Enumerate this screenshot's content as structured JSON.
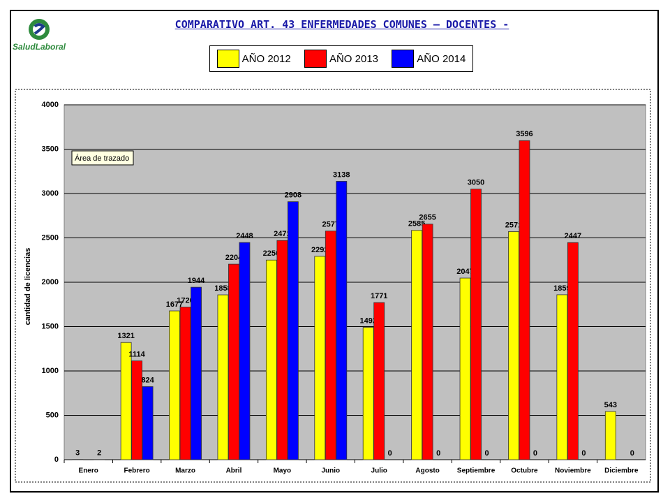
{
  "logo": "SaludLaboral",
  "tooltip": "Área de trazado",
  "chart_data": {
    "type": "bar",
    "title": "COMPARATIVO ART. 43 ENFERMEDADES COMUNES – DOCENTES -",
    "ylabel": "cantidad de licencias",
    "categories": [
      "Enero",
      "Febrero",
      "Marzo",
      "Abril",
      "Mayo",
      "Junio",
      "Julio",
      "Agosto",
      "Septiembre",
      "Octubre",
      "Noviembre",
      "Diciembre"
    ],
    "series": [
      {
        "name": "AÑO 2012",
        "color": "#ffff00",
        "values": [
          3,
          1321,
          1677,
          1858,
          2250,
          2292,
          1492,
          2585,
          2047,
          2571,
          1859,
          543
        ]
      },
      {
        "name": "AÑO 2013",
        "color": "#ff0000",
        "values": [
          null,
          1114,
          1720,
          2204,
          2471,
          2577,
          1771,
          2655,
          3050,
          3596,
          2447,
          null
        ]
      },
      {
        "name": "AÑO 2014",
        "color": "#0000ff",
        "values": [
          2,
          824,
          1944,
          2448,
          2908,
          3138,
          0,
          0,
          0,
          0,
          0,
          0
        ]
      }
    ],
    "ylim": [
      0,
      4000
    ],
    "yticks": [
      0,
      500,
      1000,
      1500,
      2000,
      2500,
      3000,
      3500,
      4000
    ],
    "grid": true
  }
}
